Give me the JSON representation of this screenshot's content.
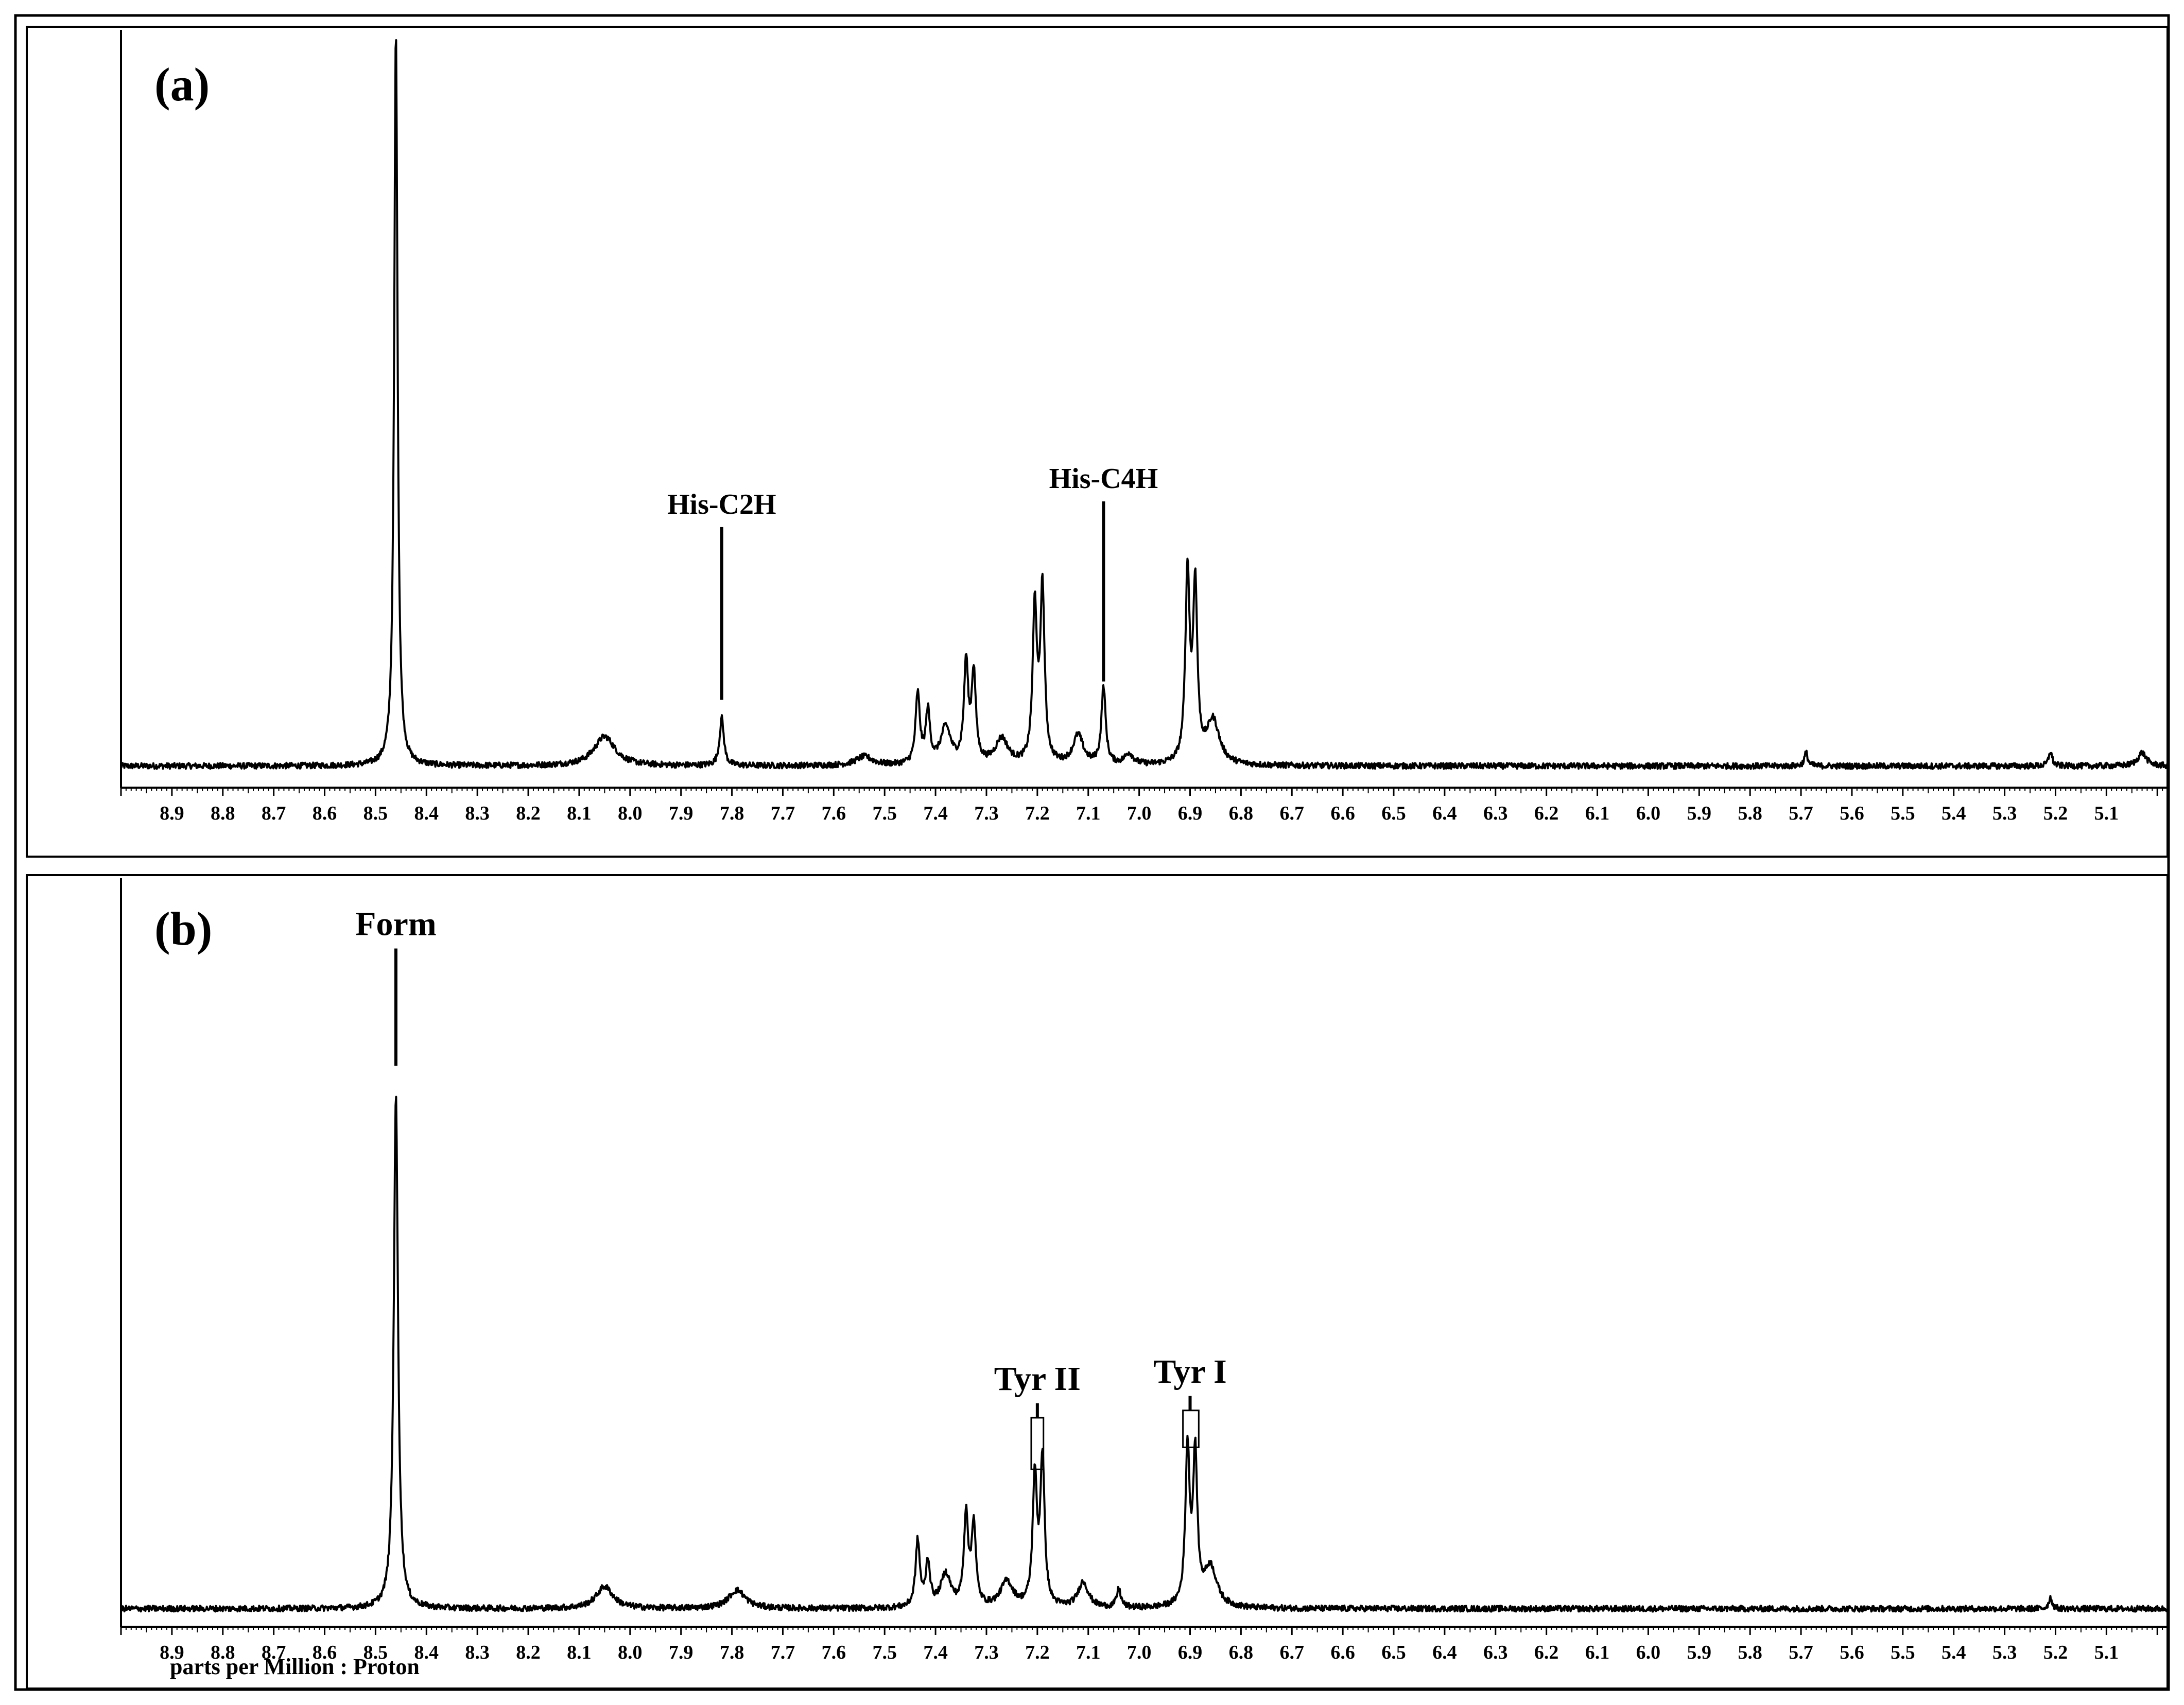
{
  "chart_data": [
    {
      "type": "line",
      "panel_label": "(a)",
      "xlabel": "",
      "xlim": [
        9.0,
        4.98
      ],
      "x_reversed": true,
      "ticks": [
        "8.9",
        "8.8",
        "8.7",
        "8.6",
        "8.5",
        "8.4",
        "8.3",
        "8.2",
        "8.1",
        "8.0",
        "7.9",
        "7.8",
        "7.7",
        "7.6",
        "7.5",
        "7.4",
        "7.3",
        "7.2",
        "7.1",
        "7.0",
        "6.9",
        "6.8",
        "6.7",
        "6.6",
        "6.5",
        "6.4",
        "6.3",
        "6.2",
        "6.1",
        "6.0",
        "5.9",
        "5.8",
        "5.7",
        "5.6",
        "5.5",
        "5.4",
        "5.3",
        "5.2",
        "5.1"
      ],
      "baseline": 0.0,
      "peaks": [
        {
          "ppm": 8.46,
          "height": 1.0,
          "width": 0.004
        },
        {
          "ppm": 8.05,
          "height": 0.04,
          "width": 0.025
        },
        {
          "ppm": 7.82,
          "height": 0.065,
          "width": 0.005
        },
        {
          "ppm": 7.54,
          "height": 0.012,
          "width": 0.02
        },
        {
          "ppm": 7.435,
          "height": 0.095,
          "width": 0.005
        },
        {
          "ppm": 7.415,
          "height": 0.07,
          "width": 0.005
        },
        {
          "ppm": 7.38,
          "height": 0.05,
          "width": 0.012
        },
        {
          "ppm": 7.34,
          "height": 0.135,
          "width": 0.005
        },
        {
          "ppm": 7.325,
          "height": 0.12,
          "width": 0.005
        },
        {
          "ppm": 7.27,
          "height": 0.035,
          "width": 0.015
        },
        {
          "ppm": 7.205,
          "height": 0.21,
          "width": 0.005
        },
        {
          "ppm": 7.19,
          "height": 0.235,
          "width": 0.005
        },
        {
          "ppm": 7.12,
          "height": 0.04,
          "width": 0.012
        },
        {
          "ppm": 7.07,
          "height": 0.105,
          "width": 0.005
        },
        {
          "ppm": 7.02,
          "height": 0.015,
          "width": 0.01
        },
        {
          "ppm": 6.905,
          "height": 0.255,
          "width": 0.005
        },
        {
          "ppm": 6.89,
          "height": 0.235,
          "width": 0.005
        },
        {
          "ppm": 6.855,
          "height": 0.06,
          "width": 0.015
        },
        {
          "ppm": 5.69,
          "height": 0.018,
          "width": 0.004
        },
        {
          "ppm": 5.21,
          "height": 0.02,
          "width": 0.004
        },
        {
          "ppm": 5.03,
          "height": 0.018,
          "width": 0.01
        }
      ],
      "annotations": [
        {
          "label": "His-C2H",
          "ppm": 7.82,
          "line_top": 0.325,
          "line_bottom": 0.09
        },
        {
          "label": "His-C4H",
          "ppm": 7.07,
          "line_top": 0.36,
          "line_bottom": 0.115
        }
      ]
    },
    {
      "type": "line",
      "panel_label": "(b)",
      "xlabel": "parts per Million : Proton",
      "xlim": [
        9.0,
        4.98
      ],
      "x_reversed": true,
      "ticks": [
        "8.9",
        "8.8",
        "8.7",
        "8.6",
        "8.5",
        "8.4",
        "8.3",
        "8.2",
        "8.1",
        "8.0",
        "7.9",
        "7.8",
        "7.7",
        "7.6",
        "7.5",
        "7.4",
        "7.3",
        "7.2",
        "7.1",
        "7.0",
        "6.9",
        "6.8",
        "6.7",
        "6.6",
        "6.5",
        "6.4",
        "6.3",
        "6.2",
        "6.1",
        "6.0",
        "5.9",
        "5.8",
        "5.7",
        "5.6",
        "5.5",
        "5.4",
        "5.3",
        "5.2",
        "5.1"
      ],
      "baseline": 0.0,
      "peaks": [
        {
          "ppm": 8.46,
          "height": 0.7,
          "width": 0.005
        },
        {
          "ppm": 8.05,
          "height": 0.03,
          "width": 0.02
        },
        {
          "ppm": 7.79,
          "height": 0.025,
          "width": 0.02
        },
        {
          "ppm": 7.435,
          "height": 0.09,
          "width": 0.005
        },
        {
          "ppm": 7.415,
          "height": 0.06,
          "width": 0.005
        },
        {
          "ppm": 7.38,
          "height": 0.045,
          "width": 0.012
        },
        {
          "ppm": 7.34,
          "height": 0.125,
          "width": 0.005
        },
        {
          "ppm": 7.325,
          "height": 0.11,
          "width": 0.005
        },
        {
          "ppm": 7.26,
          "height": 0.035,
          "width": 0.015
        },
        {
          "ppm": 7.205,
          "height": 0.175,
          "width": 0.005
        },
        {
          "ppm": 7.19,
          "height": 0.2,
          "width": 0.005
        },
        {
          "ppm": 7.11,
          "height": 0.035,
          "width": 0.012
        },
        {
          "ppm": 7.04,
          "height": 0.025,
          "width": 0.005
        },
        {
          "ppm": 6.905,
          "height": 0.21,
          "width": 0.005
        },
        {
          "ppm": 6.89,
          "height": 0.2,
          "width": 0.005
        },
        {
          "ppm": 6.86,
          "height": 0.055,
          "width": 0.015
        },
        {
          "ppm": 5.21,
          "height": 0.015,
          "width": 0.004
        }
      ],
      "annotations": [
        {
          "label": "Form",
          "ppm": 8.46,
          "line_top": 0.9,
          "line_bottom": 0.74
        },
        {
          "label": "Tyr II",
          "ppm": 7.2,
          "line_top": 0.28,
          "line_bottom": 0.19,
          "bracket": [
            7.21,
            7.19
          ]
        },
        {
          "label": "Tyr I",
          "ppm": 6.9,
          "line_top": 0.29,
          "line_bottom": 0.22,
          "bracket": [
            6.912,
            6.885
          ]
        }
      ]
    }
  ]
}
